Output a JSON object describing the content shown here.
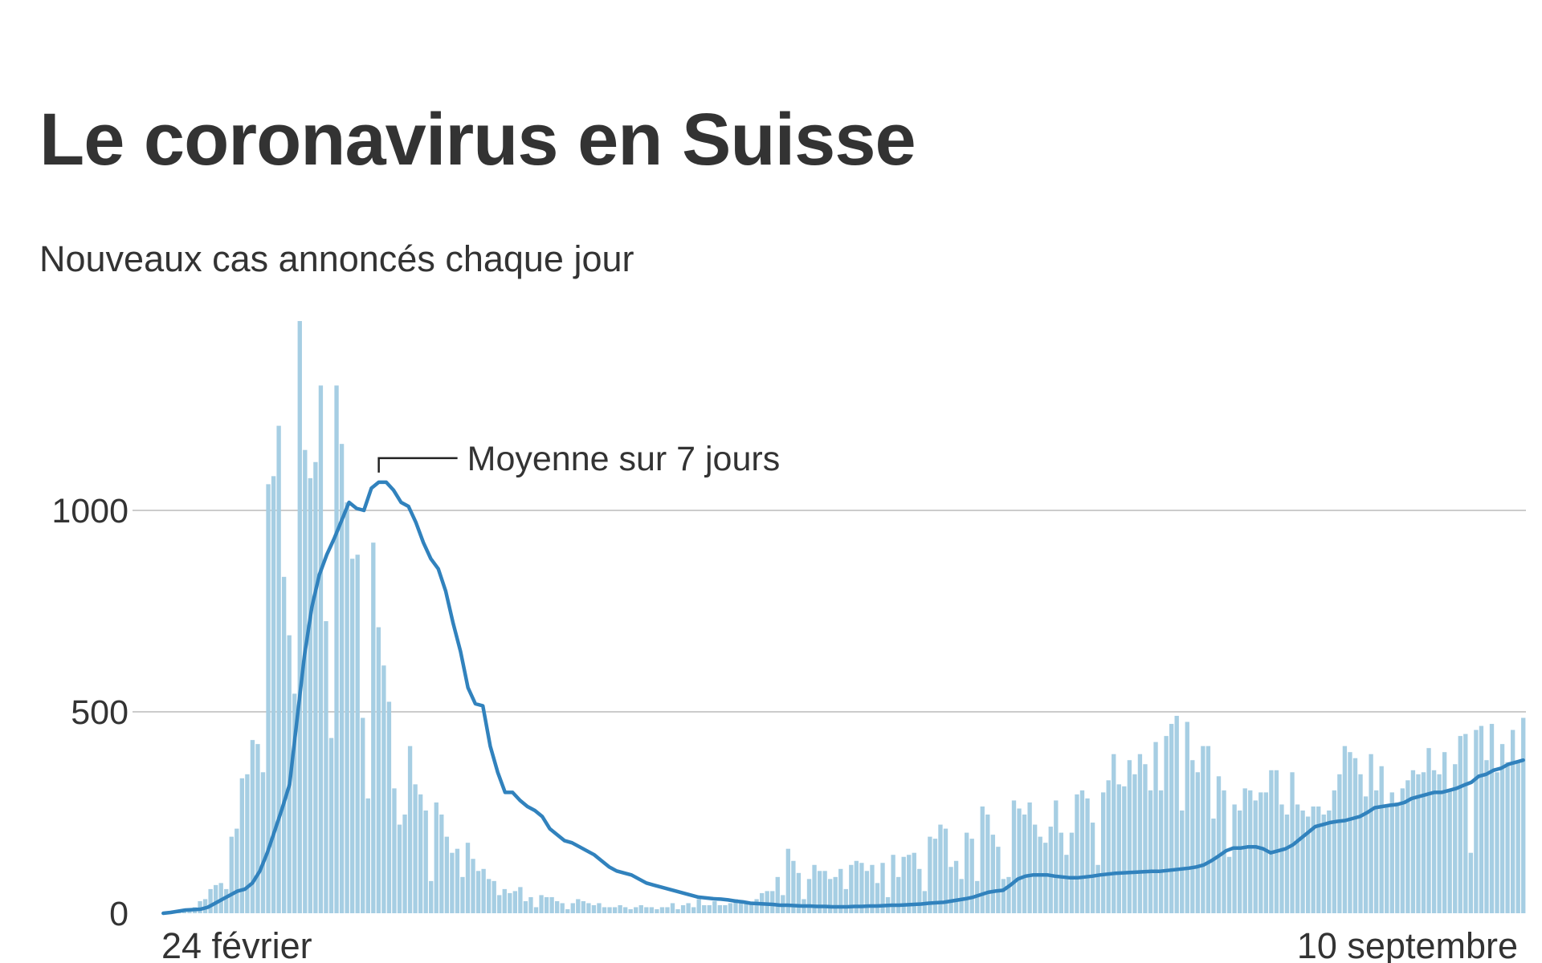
{
  "chart_data": {
    "type": "bar",
    "title": "Le coronavirus en Suisse",
    "subtitle": "Nouveaux cas annoncés chaque jour",
    "x_range": [
      "2020-02-24",
      "2020-09-10"
    ],
    "x_tick_labels": [
      "24 février",
      "10 septembre"
    ],
    "y_ticks": [
      0,
      500,
      1000
    ],
    "ylim": [
      0,
      1500
    ],
    "grid": true,
    "colors": {
      "bars": "#a6cee3",
      "line": "#3182bd",
      "grid": "#cccccc",
      "text": "#333333"
    },
    "annotation": {
      "text": "Moyenne sur 7 jours"
    },
    "series": [
      {
        "kind": "bar",
        "values": [
          0,
          2,
          5,
          5,
          6,
          10,
          15,
          30,
          35,
          60,
          70,
          75,
          60,
          190,
          210,
          335,
          345,
          430,
          420,
          350,
          1065,
          1085,
          1210,
          835,
          690,
          545,
          1470,
          1150,
          1080,
          1120,
          1310,
          725,
          435,
          1310,
          1165,
          1020,
          880,
          890,
          485,
          285,
          920,
          710,
          615,
          525,
          310,
          220,
          245,
          415,
          320,
          295,
          255,
          80,
          275,
          245,
          190,
          150,
          160,
          90,
          175,
          135,
          105,
          110,
          85,
          80,
          45,
          60,
          50,
          55,
          65,
          30,
          40,
          15,
          45,
          40,
          40,
          30,
          25,
          10,
          25,
          35,
          30,
          25,
          20,
          25,
          15,
          15,
          15,
          20,
          15,
          10,
          15,
          20,
          15,
          15,
          10,
          15,
          15,
          25,
          10,
          20,
          25,
          15,
          35,
          20,
          20,
          30,
          20,
          20,
          25,
          35,
          30,
          30,
          25,
          35,
          50,
          55,
          55,
          90,
          45,
          160,
          130,
          100,
          35,
          85,
          120,
          105,
          105,
          85,
          90,
          110,
          60,
          120,
          130,
          125,
          105,
          120,
          75,
          125,
          40,
          145,
          90,
          140,
          145,
          150,
          110,
          55,
          190,
          185,
          220,
          210,
          115,
          130,
          85,
          200,
          185,
          80,
          265,
          245,
          195,
          165,
          85,
          90,
          280,
          260,
          245,
          275,
          220,
          190,
          175,
          215,
          280,
          200,
          145,
          200,
          295,
          305,
          285,
          225,
          120,
          300,
          330,
          395,
          320,
          315,
          380,
          345,
          395,
          370,
          305,
          425,
          305,
          440,
          470,
          490,
          255,
          475,
          380,
          350,
          415,
          415,
          235,
          340,
          305,
          140,
          270,
          255,
          310,
          305,
          280,
          300,
          300,
          355,
          355,
          270,
          245,
          350,
          270,
          255,
          240,
          265,
          265,
          245,
          255,
          305,
          345,
          415,
          400,
          385,
          345,
          290,
          395,
          305,
          365,
          270,
          300,
          275,
          310,
          330,
          355,
          345,
          350,
          410,
          355,
          345,
          400,
          305,
          370,
          440,
          445,
          150,
          455,
          465,
          380,
          470,
          350,
          420,
          375,
          455,
          380,
          485
        ]
      },
      {
        "kind": "line",
        "name": "Moyenne sur 7 jours",
        "values": [
          0,
          2,
          5,
          8,
          9,
          10,
          15,
          25,
          35,
          45,
          55,
          60,
          75,
          105,
          150,
          205,
          260,
          320,
          480,
          640,
          760,
          840,
          890,
          930,
          975,
          1020,
          1005,
          1000,
          1055,
          1070,
          1070,
          1050,
          1020,
          1010,
          970,
          920,
          880,
          855,
          800,
          720,
          650,
          560,
          520,
          515,
          415,
          350,
          300,
          300,
          280,
          265,
          255,
          240,
          210,
          195,
          180,
          175,
          165,
          155,
          145,
          130,
          115,
          105,
          100,
          95,
          85,
          75,
          70,
          65,
          60,
          55,
          50,
          45,
          40,
          38,
          36,
          35,
          33,
          30,
          28,
          25,
          24,
          23,
          22,
          20,
          20,
          19,
          18,
          18,
          17,
          17,
          16,
          16,
          16,
          17,
          17,
          18,
          18,
          19,
          20,
          20,
          21,
          22,
          23,
          25,
          26,
          27,
          30,
          33,
          36,
          40,
          46,
          52,
          55,
          57,
          70,
          85,
          92,
          95,
          95,
          95,
          92,
          90,
          88,
          88,
          90,
          92,
          95,
          97,
          99,
          100,
          101,
          102,
          103,
          104,
          104,
          106,
          108,
          110,
          112,
          115,
          120,
          130,
          142,
          155,
          162,
          162,
          165,
          165,
          160,
          150,
          155,
          160,
          170,
          185,
          200,
          215,
          220,
          225,
          228,
          230,
          235,
          240,
          250,
          262,
          265,
          268,
          270,
          275,
          285,
          290,
          295,
          300,
          300,
          305,
          310,
          318,
          325,
          340,
          345,
          355,
          360,
          370,
          375,
          380
        ]
      }
    ]
  }
}
